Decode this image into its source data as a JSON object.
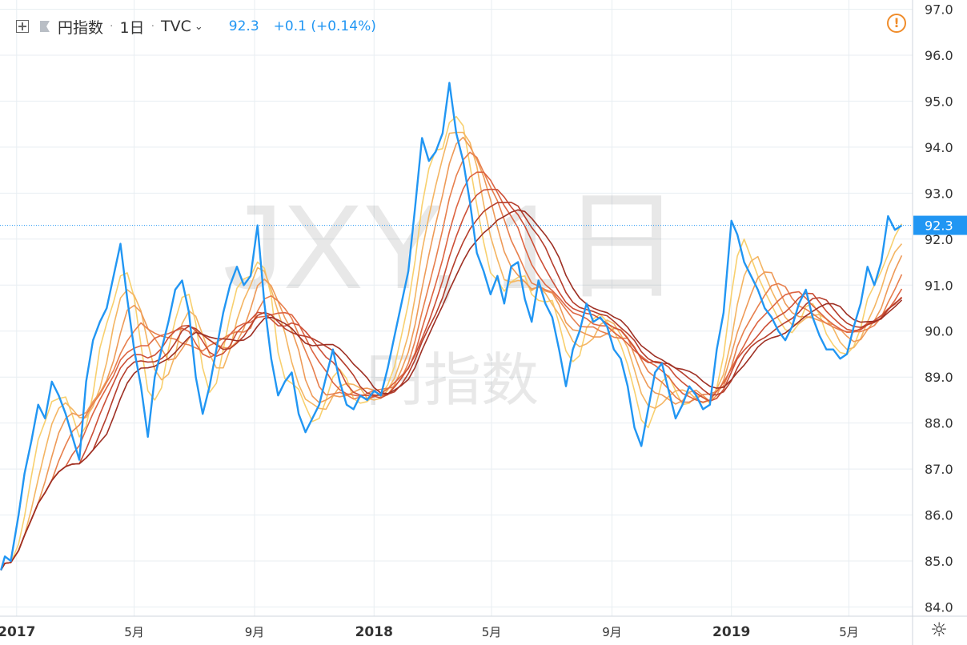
{
  "header": {
    "symbol_name": "円指数",
    "interval": "1日",
    "exchange": "TVC",
    "last_price": "92.3",
    "change": "+0.1 (+0.14%)"
  },
  "watermark": {
    "ticker_interval": "JXY, 1日",
    "name": "円指数"
  },
  "icons": {
    "plus": "plus-square-icon",
    "flag": "flag-icon",
    "chevron": "chevron-down-icon",
    "warning": "warning-icon",
    "settings": "settings-icon"
  },
  "colors": {
    "price_line": "#2196f3",
    "grid": "#e8eef2",
    "price_label_bg": "#2196f3",
    "ribbon": [
      "#fde67a",
      "#f8d06e",
      "#f4b563",
      "#ee9a58",
      "#e77f4d",
      "#dd6542",
      "#cc4f36",
      "#b53e2c",
      "#9e3024"
    ]
  },
  "chart_data": {
    "type": "line",
    "title": "",
    "xlabel": "",
    "ylabel": "",
    "ylim": [
      83.8,
      97.2
    ],
    "xlim": [
      "2016-12-15",
      "2019-07-05"
    ],
    "y_ticks": [
      "84.0",
      "85.0",
      "86.0",
      "87.0",
      "88.0",
      "89.0",
      "90.0",
      "91.0",
      "92.0",
      "93.0",
      "94.0",
      "95.0",
      "96.0",
      "97.0"
    ],
    "x_ticks": [
      {
        "date": "2017-01-01",
        "label": "2017"
      },
      {
        "date": "2017-05-01",
        "label": "5月"
      },
      {
        "date": "2017-09-01",
        "label": "9月"
      },
      {
        "date": "2018-01-01",
        "label": "2018"
      },
      {
        "date": "2018-05-01",
        "label": "5月"
      },
      {
        "date": "2018-09-01",
        "label": "9月"
      },
      {
        "date": "2019-01-01",
        "label": "2019"
      },
      {
        "date": "2019-05-01",
        "label": "5月"
      }
    ],
    "last_value_label": "92.3",
    "last_value": 92.3,
    "grid": true,
    "price_series": {
      "x": [
        "2016-12-16",
        "2016-12-20",
        "2016-12-26",
        "2017-01-03",
        "2017-01-09",
        "2017-01-16",
        "2017-01-23",
        "2017-01-30",
        "2017-02-06",
        "2017-02-13",
        "2017-02-20",
        "2017-02-27",
        "2017-03-06",
        "2017-03-13",
        "2017-03-20",
        "2017-03-27",
        "2017-04-03",
        "2017-04-10",
        "2017-04-17",
        "2017-04-24",
        "2017-05-01",
        "2017-05-08",
        "2017-05-15",
        "2017-05-22",
        "2017-05-29",
        "2017-06-05",
        "2017-06-12",
        "2017-06-19",
        "2017-06-26",
        "2017-07-03",
        "2017-07-10",
        "2017-07-17",
        "2017-07-24",
        "2017-07-31",
        "2017-08-07",
        "2017-08-14",
        "2017-08-21",
        "2017-08-28",
        "2017-09-04",
        "2017-09-11",
        "2017-09-18",
        "2017-09-25",
        "2017-10-02",
        "2017-10-09",
        "2017-10-16",
        "2017-10-23",
        "2017-10-30",
        "2017-11-06",
        "2017-11-13",
        "2017-11-20",
        "2017-11-27",
        "2017-12-04",
        "2017-12-11",
        "2017-12-18",
        "2017-12-25",
        "2018-01-01",
        "2018-01-08",
        "2018-01-15",
        "2018-01-22",
        "2018-01-29",
        "2018-02-05",
        "2018-02-12",
        "2018-02-19",
        "2018-02-26",
        "2018-03-05",
        "2018-03-12",
        "2018-03-19",
        "2018-03-26",
        "2018-04-02",
        "2018-04-09",
        "2018-04-16",
        "2018-04-23",
        "2018-04-30",
        "2018-05-07",
        "2018-05-14",
        "2018-05-21",
        "2018-05-28",
        "2018-06-04",
        "2018-06-11",
        "2018-06-18",
        "2018-06-25",
        "2018-07-02",
        "2018-07-09",
        "2018-07-16",
        "2018-07-23",
        "2018-07-30",
        "2018-08-06",
        "2018-08-13",
        "2018-08-20",
        "2018-08-27",
        "2018-09-03",
        "2018-09-10",
        "2018-09-17",
        "2018-09-24",
        "2018-10-01",
        "2018-10-08",
        "2018-10-15",
        "2018-10-22",
        "2018-10-29",
        "2018-11-05",
        "2018-11-12",
        "2018-11-19",
        "2018-11-26",
        "2018-12-03",
        "2018-12-10",
        "2018-12-17",
        "2018-12-24",
        "2019-01-01",
        "2019-01-07",
        "2019-01-14",
        "2019-01-21",
        "2019-01-28",
        "2019-02-04",
        "2019-02-11",
        "2019-02-18",
        "2019-02-25",
        "2019-03-04",
        "2019-03-11",
        "2019-03-18",
        "2019-03-25",
        "2019-04-01",
        "2019-04-08",
        "2019-04-15",
        "2019-04-22",
        "2019-04-29",
        "2019-05-06",
        "2019-05-13",
        "2019-05-20",
        "2019-05-27",
        "2019-06-03",
        "2019-06-10",
        "2019-06-17",
        "2019-06-24"
      ],
      "values": [
        84.8,
        85.1,
        85.0,
        86.0,
        86.9,
        87.6,
        88.4,
        88.1,
        88.9,
        88.6,
        88.2,
        87.7,
        87.2,
        88.9,
        89.8,
        90.2,
        90.5,
        91.2,
        91.9,
        90.7,
        89.6,
        88.8,
        87.7,
        89.0,
        89.6,
        90.2,
        90.9,
        91.1,
        90.4,
        89.0,
        88.2,
        88.8,
        89.6,
        90.4,
        91.0,
        91.4,
        91.0,
        91.2,
        92.3,
        90.6,
        89.4,
        88.6,
        88.9,
        89.1,
        88.2,
        87.8,
        88.1,
        88.4,
        89.0,
        89.6,
        88.9,
        88.4,
        88.3,
        88.6,
        88.5,
        88.7,
        88.6,
        89.2,
        89.9,
        90.6,
        91.3,
        92.7,
        94.2,
        93.7,
        93.9,
        94.3,
        95.4,
        94.3,
        93.7,
        92.8,
        91.7,
        91.3,
        90.8,
        91.2,
        90.6,
        91.4,
        91.5,
        90.7,
        90.2,
        91.1,
        90.6,
        90.3,
        89.6,
        88.8,
        89.6,
        90.0,
        90.6,
        90.2,
        90.3,
        90.1,
        89.6,
        89.4,
        88.8,
        87.9,
        87.5,
        88.3,
        89.1,
        89.3,
        88.7,
        88.1,
        88.4,
        88.8,
        88.6,
        88.3,
        88.4,
        89.6,
        90.4,
        92.4,
        92.1,
        91.5,
        91.2,
        90.9,
        90.5,
        90.3,
        90.0,
        89.8,
        90.1,
        90.6,
        90.9,
        90.3,
        89.9,
        89.6,
        89.6,
        89.4,
        89.5,
        90.1,
        90.6,
        91.4,
        91.0,
        91.5,
        92.5,
        92.2,
        92.3
      ]
    },
    "ribbon_spans": [
      0,
      2,
      4,
      6,
      8,
      10,
      12,
      14,
      16
    ],
    "watermark_note": ""
  }
}
